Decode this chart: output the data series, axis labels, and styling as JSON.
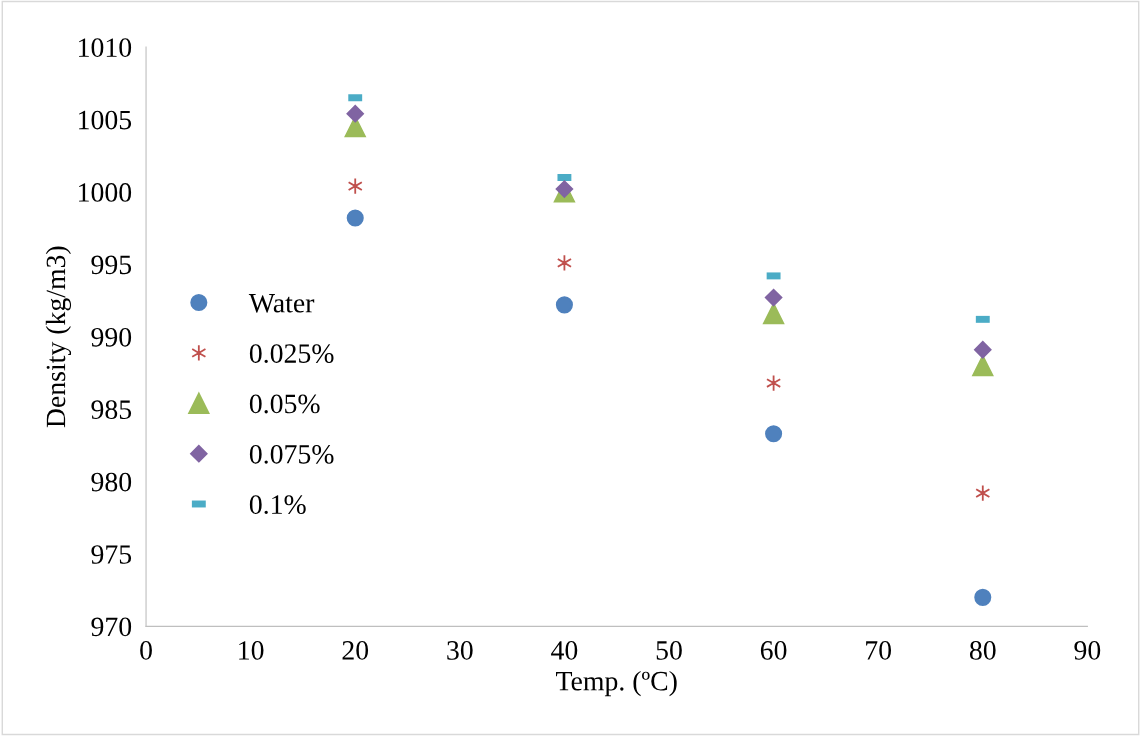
{
  "chart_data": {
    "type": "scatter",
    "xlabel": "Temp. (ºC)",
    "ylabel": "Density (kg/m3)",
    "xlim": [
      0,
      90
    ],
    "xticks": [
      0,
      10,
      20,
      30,
      40,
      50,
      60,
      70,
      80,
      90
    ],
    "ylim": [
      970,
      1010
    ],
    "yticks": [
      970,
      975,
      980,
      985,
      990,
      995,
      1000,
      1005,
      1010
    ],
    "grid": false,
    "legend": "left",
    "series": [
      {
        "name": "Water",
        "color": "#4f81bd",
        "marker": "circle",
        "x": [
          20,
          40,
          60,
          80
        ],
        "values": [
          998.2,
          992.2,
          983.3,
          972.0
        ]
      },
      {
        "name": "0.025%",
        "color": "#c0504d",
        "marker": "cross",
        "x": [
          20,
          40,
          60,
          80
        ],
        "values": [
          1000.4,
          995.1,
          986.8,
          979.2
        ]
      },
      {
        "name": "0.05%",
        "color": "#9bbb59",
        "marker": "triangle",
        "x": [
          20,
          40,
          60,
          80
        ],
        "values": [
          1004.5,
          1000.0,
          991.6,
          988.0
        ]
      },
      {
        "name": "0.075%",
        "color": "#8064a2",
        "marker": "diamond",
        "x": [
          20,
          40,
          60,
          80
        ],
        "values": [
          1005.4,
          1000.2,
          992.7,
          989.1
        ]
      },
      {
        "name": "0.1%",
        "color": "#4bacc6",
        "x": [
          20,
          40,
          60,
          80
        ],
        "values": [
          1006.5,
          1001.0,
          994.2,
          991.2
        ]
      }
    ]
  }
}
